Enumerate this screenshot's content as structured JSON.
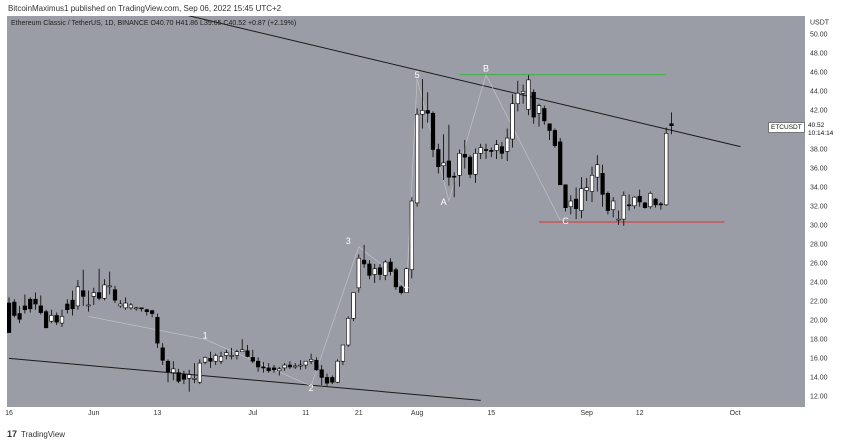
{
  "header": "BitcoinMaximus1 published on TradingView.com, Sep 06, 2022 15:45 UTC+2",
  "legend": {
    "symbol": "Ethereum Classic / TetherUS, 1D, BINANCE",
    "o_label": "O",
    "o": "40.70",
    "h_label": "H",
    "h": "41.86",
    "l_label": "L",
    "l": "39.65",
    "c_label": "C",
    "c": "40.52",
    "change": "+0.87 (+2.19%)"
  },
  "price_tag": {
    "symbol": "ETCUSDT",
    "price": "40.52",
    "countdown": "10:14:14"
  },
  "footer": {
    "logo": "17",
    "brand": "TradingView"
  },
  "colors": {
    "background": "#9a9ca6",
    "up_candle": "#ffffff",
    "down_candle": "#000000",
    "trendline": "#1a1a1a",
    "resistance": "#3cb043",
    "support": "#e03030",
    "wave_path": "#c8c8c8"
  },
  "chart_data": {
    "type": "candlestick",
    "symbol": "ETCUSDT",
    "currency": "USDT",
    "timeframe": "1D",
    "ylim": [
      11,
      52
    ],
    "y_ticks": [
      "12.00",
      "14.00",
      "16.00",
      "18.00",
      "20.00",
      "22.00",
      "24.00",
      "26.00",
      "28.00",
      "30.00",
      "32.00",
      "34.00",
      "36.00",
      "38.00",
      "40.00",
      "42.00",
      "44.00",
      "46.00",
      "48.00",
      "50.00"
    ],
    "x_tick_labels": [
      "16",
      "Jun",
      "13",
      "Jul",
      "11",
      "21",
      "Aug",
      "15",
      "Sep",
      "12",
      "Oct"
    ],
    "x_ticks_day_index": [
      0,
      16,
      28,
      46,
      56,
      66,
      77,
      91,
      109,
      119,
      137
    ],
    "date_range": [
      "2022-05-16",
      "2022-10-01"
    ],
    "candles": [
      [
        22.5,
        21.9,
        19.0,
        18.8
      ],
      [
        22.3,
        22.0,
        20.4,
        20.6
      ],
      [
        21.6,
        20.8,
        19.8,
        20.2
      ],
      [
        22.8,
        21.6,
        20.8,
        21.2
      ],
      [
        22.5,
        22.3,
        20.9,
        21.3
      ],
      [
        23.0,
        22.3,
        21.2,
        21.8
      ],
      [
        22.7,
        21.6,
        20.7,
        20.9
      ],
      [
        21.2,
        21.0,
        19.3,
        19.3
      ],
      [
        21.2,
        20.0,
        19.8,
        20.6
      ],
      [
        20.9,
        20.6,
        19.6,
        19.9
      ],
      [
        21.2,
        19.8,
        19.4,
        20.5
      ],
      [
        22.3,
        21.8,
        20.8,
        21.2
      ],
      [
        23.2,
        22.2,
        20.6,
        21.3
      ],
      [
        24.3,
        21.6,
        21.2,
        23.6
      ],
      [
        25.4,
        23.2,
        21.6,
        22.6
      ],
      [
        23.2,
        21.6,
        21.0,
        21.7
      ],
      [
        23.5,
        22.6,
        21.7,
        23.0
      ],
      [
        25.5,
        23.0,
        22.2,
        22.4
      ],
      [
        24.4,
        22.4,
        22.2,
        23.8
      ],
      [
        25.2,
        23.6,
        22.8,
        23.7
      ],
      [
        23.7,
        23.3,
        21.9,
        22.2
      ],
      [
        22.2,
        21.6,
        21.4,
        21.8
      ],
      [
        22.5,
        21.4,
        21.2,
        21.9
      ],
      [
        21.9,
        21.4,
        21.2,
        21.7
      ],
      [
        21.5,
        21.4,
        21.1,
        21.4
      ],
      [
        21.3,
        21.4,
        21.0,
        21.3
      ],
      [
        21.3,
        21.2,
        20.6,
        21.0
      ],
      [
        21.2,
        21.1,
        20.4,
        20.8
      ],
      [
        20.8,
        20.4,
        17.2,
        17.7
      ],
      [
        17.7,
        17.2,
        15.4,
        15.9
      ],
      [
        16.0,
        15.8,
        13.6,
        14.7
      ],
      [
        15.8,
        14.6,
        13.8,
        15.0
      ],
      [
        15.0,
        14.6,
        13.5,
        13.7
      ],
      [
        14.8,
        14.4,
        13.4,
        13.9
      ],
      [
        14.9,
        14.0,
        12.6,
        14.4
      ],
      [
        15.6,
        14.0,
        13.5,
        14.0
      ],
      [
        16.0,
        13.6,
        13.4,
        15.6
      ],
      [
        16.3,
        15.7,
        15.5,
        16.2
      ],
      [
        16.8,
        16.1,
        15.1,
        15.8
      ],
      [
        16.6,
        15.8,
        15.4,
        16.4
      ],
      [
        16.8,
        15.8,
        15.5,
        16.3
      ],
      [
        17.0,
        16.4,
        16.0,
        16.7
      ],
      [
        17.2,
        16.3,
        16.0,
        16.4
      ],
      [
        17.0,
        16.4,
        16.0,
        16.8
      ],
      [
        18.1,
        16.8,
        16.8,
        17.0
      ],
      [
        17.5,
        16.9,
        16.2,
        16.3
      ],
      [
        17.0,
        16.2,
        15.6,
        15.8
      ],
      [
        16.2,
        15.8,
        14.7,
        15.2
      ],
      [
        15.7,
        15.2,
        14.6,
        15.1
      ],
      [
        15.6,
        15.1,
        14.6,
        14.8
      ],
      [
        15.4,
        15.1,
        14.6,
        14.9
      ],
      [
        15.2,
        14.8,
        14.3,
        15.0
      ],
      [
        15.6,
        15.1,
        14.8,
        15.4
      ],
      [
        15.8,
        15.4,
        15.0,
        15.2
      ],
      [
        15.6,
        15.2,
        15.0,
        15.3
      ],
      [
        15.9,
        15.3,
        14.9,
        15.4
      ],
      [
        15.8,
        15.4,
        15.0,
        15.8
      ],
      [
        16.6,
        15.8,
        15.5,
        16.0
      ],
      [
        16.2,
        15.9,
        14.8,
        14.9
      ],
      [
        15.4,
        14.9,
        13.3,
        14.1
      ],
      [
        14.5,
        14.1,
        13.2,
        13.5
      ],
      [
        14.3,
        14.1,
        13.4,
        13.6
      ],
      [
        16.0,
        13.6,
        13.5,
        15.8
      ],
      [
        17.5,
        15.8,
        15.4,
        17.5
      ],
      [
        20.5,
        17.5,
        17.3,
        20.3
      ],
      [
        23.0,
        20.3,
        20.0,
        23.0
      ],
      [
        27.0,
        23.5,
        23.0,
        26.6
      ],
      [
        28.0,
        26.4,
        25.6,
        26.0
      ],
      [
        26.4,
        26.0,
        24.4,
        24.8
      ],
      [
        26.0,
        24.9,
        24.0,
        25.5
      ],
      [
        26.0,
        25.6,
        24.3,
        24.9
      ],
      [
        26.4,
        24.8,
        24.3,
        26.2
      ],
      [
        26.6,
        26.2,
        24.8,
        25.2
      ],
      [
        25.6,
        25.4,
        23.3,
        23.6
      ],
      [
        23.8,
        23.6,
        22.8,
        23.0
      ],
      [
        25.6,
        23.0,
        23.2,
        25.5
      ],
      [
        33.0,
        25.4,
        24.5,
        32.6
      ],
      [
        42.3,
        32.4,
        32.0,
        41.7
      ],
      [
        45.4,
        41.7,
        40.2,
        42.1
      ],
      [
        44.0,
        42.1,
        40.8,
        41.8
      ],
      [
        42.0,
        41.8,
        37.2,
        38.0
      ],
      [
        38.6,
        38.0,
        35.5,
        36.2
      ],
      [
        39.6,
        36.3,
        34.8,
        36.6
      ],
      [
        40.6,
        36.8,
        34.2,
        35.1
      ],
      [
        35.6,
        35.2,
        33.0,
        35.1
      ],
      [
        38.0,
        35.3,
        34.1,
        37.6
      ],
      [
        39.0,
        37.5,
        36.0,
        37.2
      ],
      [
        37.4,
        37.2,
        35.0,
        35.4
      ],
      [
        38.1,
        35.4,
        34.5,
        37.6
      ],
      [
        38.6,
        37.6,
        37.0,
        38.2
      ],
      [
        38.6,
        38.0,
        37.0,
        37.9
      ],
      [
        38.2,
        37.9,
        37.2,
        37.8
      ],
      [
        39.0,
        37.9,
        37.0,
        38.5
      ],
      [
        38.8,
        38.3,
        37.0,
        37.6
      ],
      [
        40.2,
        37.8,
        36.8,
        39.2
      ],
      [
        43.8,
        39.1,
        38.2,
        42.8
      ],
      [
        45.2,
        42.8,
        42.0,
        43.9
      ],
      [
        44.8,
        43.9,
        42.8,
        44.1
      ],
      [
        45.8,
        42.2,
        41.6,
        45.3
      ],
      [
        44.3,
        44.0,
        40.7,
        41.4
      ],
      [
        42.8,
        41.8,
        40.4,
        42.6
      ],
      [
        42.6,
        42.3,
        40.6,
        41.0
      ],
      [
        40.7,
        40.7,
        39.0,
        40.0
      ],
      [
        40.2,
        40.0,
        38.2,
        38.4
      ],
      [
        39.2,
        38.8,
        34.4,
        34.3
      ],
      [
        34.3,
        34.3,
        31.5,
        31.9
      ],
      [
        33.2,
        32.0,
        31.2,
        32.6
      ],
      [
        34.0,
        32.8,
        30.7,
        31.8
      ],
      [
        35.1,
        31.6,
        30.8,
        33.9
      ],
      [
        35.0,
        33.7,
        32.6,
        34.0
      ],
      [
        36.2,
        33.6,
        32.5,
        35.3
      ],
      [
        37.4,
        35.1,
        33.6,
        36.4
      ],
      [
        36.4,
        35.5,
        32.0,
        33.3
      ],
      [
        33.6,
        33.4,
        31.2,
        31.6
      ],
      [
        33.0,
        31.7,
        30.9,
        32.6
      ],
      [
        31.6,
        30.6,
        30.1,
        30.7
      ],
      [
        33.6,
        30.7,
        30.0,
        33.2
      ],
      [
        33.3,
        32.2,
        31.6,
        32.1
      ],
      [
        33.1,
        32.1,
        31.8,
        33.0
      ],
      [
        33.8,
        33.1,
        32.0,
        32.5
      ],
      [
        32.5,
        32.4,
        31.8,
        31.9
      ],
      [
        33.6,
        32.0,
        31.8,
        33.4
      ],
      [
        32.9,
        32.8,
        31.9,
        32.2
      ],
      [
        32.5,
        32.3,
        31.7,
        32.2
      ],
      [
        40.3,
        32.2,
        32.1,
        39.7
      ],
      [
        41.9,
        40.7,
        39.6,
        40.5
      ]
    ],
    "candle_format": [
      "high",
      "open",
      "low",
      "close"
    ],
    "last_price": 40.52,
    "trendlines": [
      {
        "name": "descending-resistance",
        "points": [
          [
            "2022-05-16",
            56.5
          ],
          [
            "2022-10-01",
            38.3
          ]
        ]
      },
      {
        "name": "descending-support",
        "points": [
          [
            "2022-05-16",
            16.1
          ],
          [
            "2022-08-13",
            11.7
          ]
        ]
      }
    ],
    "horizontal_lines": [
      {
        "name": "resistance-level",
        "y": 45.85,
        "x_start": "2022-08-09",
        "x_end": "2022-09-17",
        "color": "green"
      },
      {
        "name": "support-level",
        "y": 30.4,
        "x_start": "2022-08-24",
        "x_end": "2022-09-28",
        "color": "red"
      }
    ],
    "wave_labels": [
      {
        "text": "1",
        "x": "2022-06-22",
        "y": 18.2
      },
      {
        "text": "2",
        "x": "2022-07-12",
        "y": 12.7
      },
      {
        "text": "3",
        "x": "2022-07-19",
        "y": 28.1
      },
      {
        "text": "4",
        "x": "2022-07-30",
        "y": 23.3
      },
      {
        "text": "5",
        "x": "2022-08-01",
        "y": 45.5
      },
      {
        "text": "A",
        "x": "2022-08-06",
        "y": 32.2
      },
      {
        "text": "B",
        "x": "2022-08-14",
        "y": 46.2
      },
      {
        "text": "C",
        "x": "2022-08-29",
        "y": 30.2
      }
    ],
    "wave_path": [
      [
        "2022-05-31",
        20.5
      ],
      [
        "2022-06-22",
        18.1
      ],
      [
        "2022-07-12",
        13.2
      ],
      [
        "2022-07-21",
        27.8
      ],
      [
        "2022-07-27",
        25.2
      ],
      [
        "2022-07-30",
        23.3
      ],
      [
        "2022-08-01",
        45.4
      ],
      [
        "2022-08-07",
        32.6
      ],
      [
        "2022-08-14",
        45.8
      ],
      [
        "2022-08-28",
        30.6
      ]
    ]
  }
}
